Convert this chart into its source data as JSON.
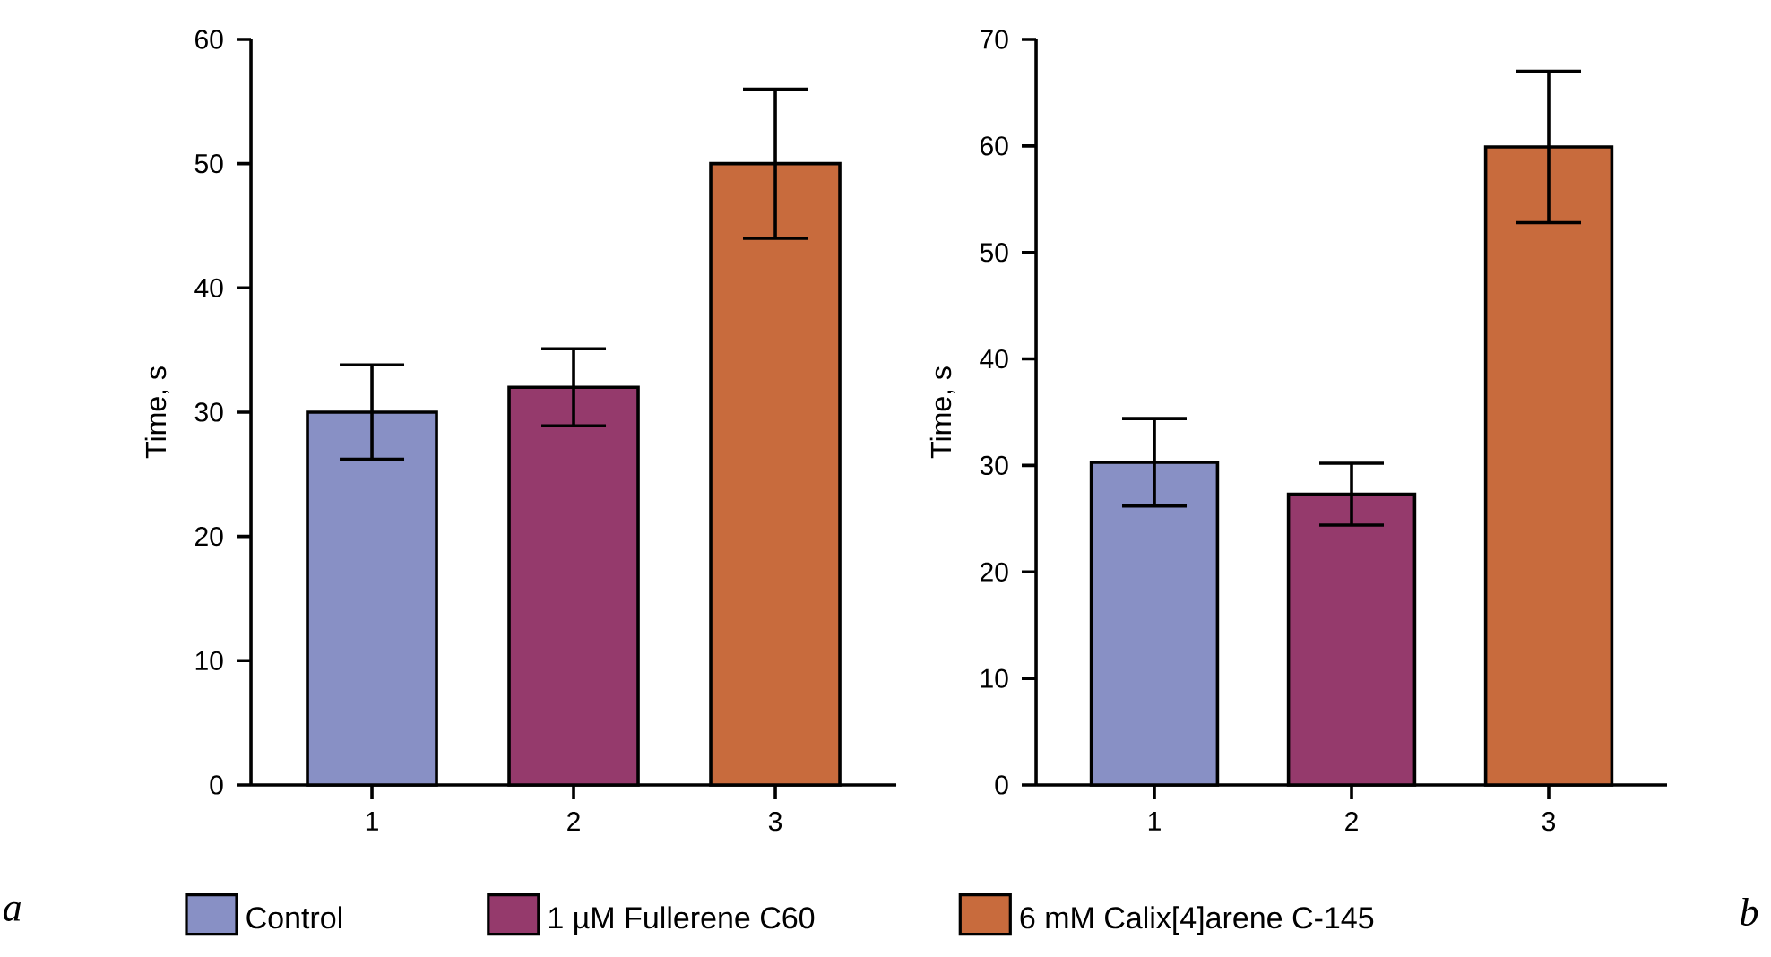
{
  "chart_data": [
    {
      "type": "bar",
      "categories": [
        "1",
        "2",
        "3"
      ],
      "ylabel": "Time, s",
      "ylim": [
        0,
        60
      ],
      "yticks": [
        0,
        10,
        20,
        30,
        40,
        50,
        60
      ],
      "legend": "bottom",
      "annotations": [
        "a"
      ],
      "series": [
        {
          "name": "Control",
          "color": "#8890c5",
          "values": [
            30.0,
            null,
            null
          ],
          "errors": [
            3.8,
            null,
            null
          ]
        },
        {
          "name": "1 µM Fullerene C60",
          "color": "#953a6c",
          "values": [
            null,
            32.0,
            null
          ],
          "errors": [
            null,
            3.1,
            null
          ]
        },
        {
          "name": "6 mM Calix[4]arene C-145",
          "color": "#c86b3d",
          "values": [
            null,
            null,
            50.0
          ],
          "errors": [
            null,
            null,
            6.0
          ]
        }
      ]
    },
    {
      "type": "bar",
      "categories": [
        "1",
        "2",
        "3"
      ],
      "ylabel": "Time, s",
      "ylim": [
        0,
        70
      ],
      "yticks": [
        0,
        10,
        20,
        30,
        40,
        50,
        60,
        70
      ],
      "annotations": [
        "b"
      ],
      "series": [
        {
          "color": "#8890c5",
          "values": [
            30.3,
            null,
            null
          ],
          "errors": [
            4.1,
            null,
            null
          ]
        },
        {
          "color": "#953a6c",
          "values": [
            null,
            27.3,
            null
          ],
          "errors": [
            null,
            2.9,
            null
          ]
        },
        {
          "color": "#c86b3d",
          "values": [
            null,
            null,
            59.9
          ],
          "errors": [
            null,
            null,
            7.1
          ]
        }
      ]
    }
  ]
}
